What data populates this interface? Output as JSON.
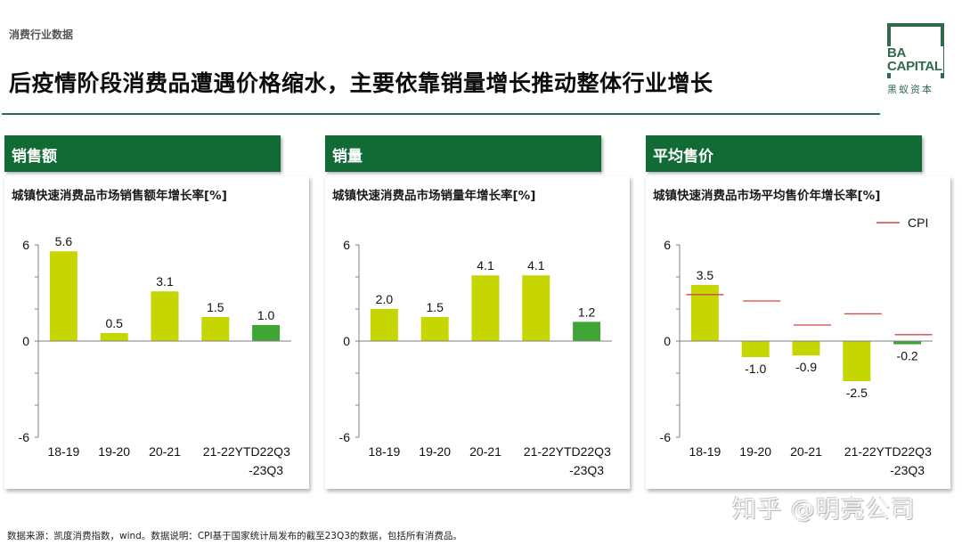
{
  "header": {
    "section_tag": "消费行业数据",
    "title": "后疫情阶段消费品遭遇价格缩水，主要依靠销量增长推动整体行业增长"
  },
  "logo": {
    "line1": "BA",
    "line2": "CAPITAL",
    "cn": "黑蚁资本",
    "color": "#2f6b4b"
  },
  "colors": {
    "header_green": "#126b35",
    "bar_lime": "#c6d600",
    "bar_green": "#3fa535",
    "cpi_red": "#d64545",
    "axis": "#7f7f7f"
  },
  "panels": [
    {
      "header": "销售额",
      "chart_title": "城镇快速消费品市场销售额年增长率[%]"
    },
    {
      "header": "销量",
      "chart_title": "城镇快速消费品市场销量年增长率[%]"
    },
    {
      "header": "平均售价",
      "chart_title": "城镇快速消费品市场平均售价年增长率[%]",
      "legend_label": "CPI"
    }
  ],
  "chart_data": [
    {
      "type": "bar",
      "title": "城镇快速消费品市场销售额年增长率[%]",
      "categories": [
        "18-19",
        "19-20",
        "20-21",
        "21-22",
        "YTD22Q3-23Q3"
      ],
      "category_labels": [
        "18-19",
        "19-20",
        "20-21",
        "21-22YTD22Q3",
        "-23Q3"
      ],
      "values": [
        5.6,
        0.5,
        3.1,
        1.5,
        1.0
      ],
      "data_labels": [
        "5.6",
        "0.5",
        "3.1",
        "1.5",
        "1.0"
      ],
      "highlight_last": true,
      "ylim": [
        -6,
        6
      ],
      "yticks": [
        6,
        0,
        -6
      ],
      "xlabel": "",
      "ylabel": "%",
      "grid": false
    },
    {
      "type": "bar",
      "title": "城镇快速消费品市场销量年增长率[%]",
      "categories": [
        "18-19",
        "19-20",
        "20-21",
        "21-22",
        "YTD22Q3-23Q3"
      ],
      "category_labels": [
        "18-19",
        "19-20",
        "20-21",
        "21-22YTD22Q3",
        "-23Q3"
      ],
      "values": [
        2.0,
        1.5,
        4.1,
        4.1,
        1.2
      ],
      "data_labels": [
        "2.0",
        "1.5",
        "4.1",
        "4.1",
        "1.2"
      ],
      "highlight_last": true,
      "ylim": [
        -6,
        6
      ],
      "yticks": [
        6,
        0,
        -6
      ],
      "xlabel": "",
      "ylabel": "%",
      "grid": false
    },
    {
      "type": "bar",
      "title": "城镇快速消费品市场平均售价年增长率[%]",
      "categories": [
        "18-19",
        "19-20",
        "20-21",
        "21-22",
        "YTD22Q3-23Q3"
      ],
      "category_labels": [
        "18-19",
        "19-20",
        "20-21",
        "21-22YTD22Q3",
        "-23Q3"
      ],
      "series": [
        {
          "name": "平均售价",
          "type": "bar",
          "values": [
            3.5,
            -1.0,
            -0.9,
            -2.5,
            -0.2
          ]
        },
        {
          "name": "CPI",
          "type": "marker-line",
          "values": [
            2.9,
            2.5,
            1.0,
            1.7,
            0.4
          ]
        }
      ],
      "data_labels": [
        "3.5",
        "-1.0",
        "-0.9",
        "-2.5",
        "-0.2"
      ],
      "legend": {
        "entries": [
          "CPI"
        ],
        "position": "top-right"
      },
      "highlight_last": true,
      "ylim": [
        -6,
        6
      ],
      "yticks": [
        6,
        0,
        -6
      ],
      "xlabel": "",
      "ylabel": "%",
      "grid": false
    }
  ],
  "footer": {
    "note": "数据来源：凯度消费指数，wind。数据说明：CPI基于国家统计局发布的截至23Q3的数据，包括所有消费品。",
    "watermark": "知乎 @明亮公司"
  }
}
